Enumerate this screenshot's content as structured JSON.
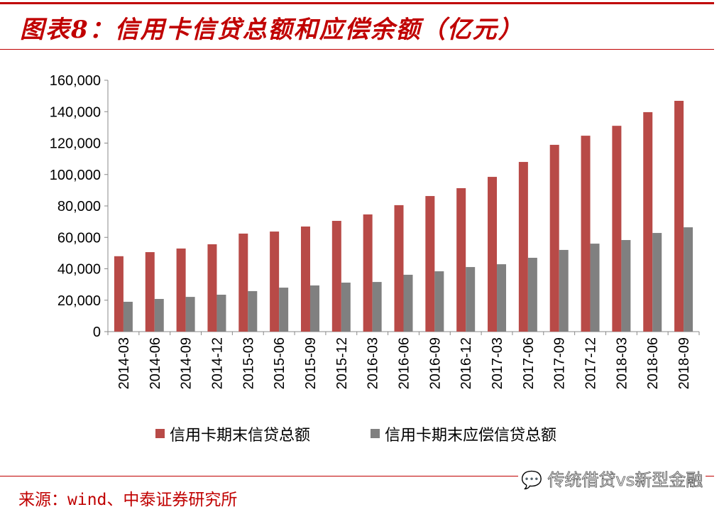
{
  "header": {
    "title": "图表8：信用卡信贷总额和应偿余额（亿元）"
  },
  "footer": {
    "source": "来源：wind、中泰证券研究所",
    "watermark": "传统借贷vs新型金融"
  },
  "chart_data": {
    "type": "bar",
    "categories": [
      "2014-03",
      "2014-06",
      "2014-09",
      "2014-12",
      "2015-03",
      "2015-06",
      "2015-09",
      "2015-12",
      "2016-03",
      "2016-06",
      "2016-09",
      "2016-12",
      "2017-03",
      "2017-06",
      "2017-09",
      "2017-12",
      "2018-03",
      "2018-06",
      "2018-09"
    ],
    "series": [
      {
        "name": "信用卡期末信贷总额",
        "color": "#b84a47",
        "values": [
          48000,
          50600,
          52900,
          55600,
          62400,
          63700,
          66900,
          70500,
          74600,
          80500,
          86300,
          91300,
          98500,
          108000,
          118900,
          124700,
          131000,
          139700,
          146900
        ]
      },
      {
        "name": "信用卡期末应偿信贷总额",
        "color": "#808080",
        "values": [
          19000,
          20800,
          22100,
          23500,
          25800,
          28000,
          29400,
          31200,
          31600,
          36200,
          38400,
          41100,
          42900,
          47000,
          52000,
          56000,
          58300,
          62800,
          66400
        ]
      }
    ],
    "yticks": [
      "0",
      "20,000",
      "40,000",
      "60,000",
      "80,000",
      "100,000",
      "120,000",
      "140,000",
      "160,000"
    ],
    "ylim": [
      0,
      160000
    ],
    "grid": false,
    "legend": "bottom"
  }
}
